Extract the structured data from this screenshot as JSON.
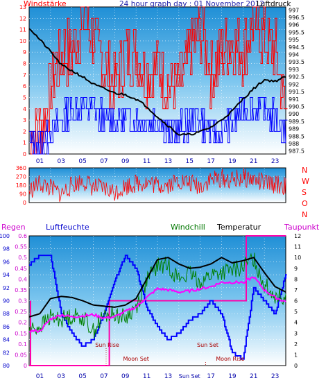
{
  "chart_data": [
    {
      "type": "line",
      "title": "24 hour graph day : 01 November 2012",
      "left_axis_label": "Windstärke",
      "right_axis_label": "Luftdruck",
      "x_ticks": [
        "01",
        "03",
        "05",
        "07",
        "09",
        "11",
        "13",
        "15",
        "17",
        "19",
        "21",
        "23"
      ],
      "left_ticks": [
        "0",
        "1",
        "2",
        "3",
        "4",
        "5",
        "6",
        "7",
        "8",
        "9",
        "10",
        "11",
        "12",
        "13"
      ],
      "right_ticks": [
        "987.5",
        "988",
        "988.5",
        "989",
        "989.5",
        "990",
        "990.5",
        "991",
        "991.5",
        "992",
        "992.5",
        "993",
        "993.5",
        "994",
        "994.5",
        "995",
        "995.5",
        "996",
        "996.5",
        "997"
      ],
      "series": [
        {
          "name": "Windstärke (gust)",
          "color": "#ff0000",
          "x": [
            0,
            1,
            2,
            3,
            4,
            5,
            6,
            7,
            8,
            9,
            10,
            11,
            12,
            13,
            14,
            15,
            16,
            17,
            18,
            19,
            20,
            21,
            22,
            23,
            24
          ],
          "values": [
            2,
            2,
            6,
            9,
            9,
            12,
            10,
            8,
            6,
            9,
            9,
            7,
            8,
            6,
            6,
            9,
            11,
            7,
            9,
            10,
            9,
            12,
            10,
            9,
            3
          ]
        },
        {
          "name": "Windstärke (average)",
          "color": "#0000ff",
          "x": [
            0,
            1,
            2,
            3,
            4,
            5,
            6,
            7,
            8,
            9,
            10,
            11,
            12,
            13,
            14,
            15,
            16,
            17,
            18,
            19,
            20,
            21,
            22,
            23,
            24
          ],
          "values": [
            1,
            1,
            2,
            3,
            4,
            4,
            4,
            3,
            3,
            3,
            3,
            3,
            3,
            2,
            2,
            3,
            3,
            2,
            2,
            3,
            4,
            4,
            4,
            3,
            2
          ]
        },
        {
          "name": "Luftdruck",
          "color": "#000000",
          "x": [
            0,
            1,
            2,
            3,
            4,
            5,
            6,
            7,
            8,
            9,
            10,
            11,
            12,
            13,
            14,
            15,
            16,
            17,
            18,
            19,
            20,
            21,
            22,
            23,
            24
          ],
          "values": [
            995.8,
            995.0,
            994.2,
            993.3,
            992.9,
            992.5,
            992.0,
            991.7,
            991.4,
            991.3,
            991.0,
            990.5,
            989.8,
            989.2,
            988.6,
            988.6,
            988.8,
            989.1,
            989.6,
            990.2,
            991.0,
            991.7,
            992.3,
            992.2,
            992.5
          ]
        }
      ],
      "ylim_left": [
        0,
        13
      ],
      "ylim_right": [
        987.3,
        997.2
      ]
    },
    {
      "type": "line",
      "left_ticks": [
        "0",
        "90",
        "180",
        "270",
        "360"
      ],
      "right_ticks": [
        "N",
        "W",
        "S",
        "O",
        "N"
      ],
      "series": [
        {
          "name": "Windrichtung",
          "color": "#ff0000",
          "x": [
            0,
            1,
            2,
            3,
            4,
            5,
            6,
            7,
            8,
            9,
            10,
            11,
            12,
            13,
            14,
            15,
            16,
            17,
            18,
            19,
            20,
            21,
            22,
            23,
            24
          ],
          "values": [
            120,
            200,
            150,
            90,
            180,
            230,
            160,
            140,
            110,
            170,
            200,
            210,
            180,
            190,
            230,
            200,
            170,
            240,
            250,
            230,
            260,
            240,
            200,
            190,
            170
          ]
        }
      ],
      "ylim": [
        0,
        360
      ]
    },
    {
      "type": "line",
      "labels": {
        "regen": "Regen",
        "luftfeuchte": "Luftfeuchte",
        "windchill": "Windchill",
        "temperatur": "Temperatur",
        "taupunkt": "Taupunkt"
      },
      "luftfeuchte_ticks": [
        "80",
        "82",
        "84",
        "86",
        "88",
        "90",
        "92",
        "94",
        "96",
        "98",
        "100"
      ],
      "regen_ticks": [
        "0",
        "0.05",
        "0.1",
        "0.15",
        "0.2",
        "0.25",
        "0.3",
        "0.35",
        "0.4",
        "0.45",
        "0.5",
        "0.55",
        "0.6"
      ],
      "temp_ticks": [
        "0",
        "1",
        "2",
        "3",
        "4",
        "5",
        "6",
        "7",
        "8",
        "9",
        "10",
        "11",
        "12"
      ],
      "x_ticks": [
        "01",
        "03",
        "05",
        "07",
        "09",
        "11",
        "13",
        "Sun Set",
        "17",
        "19",
        "21",
        "23"
      ],
      "annotations": [
        "Sun Rise",
        "Moon Set",
        "Sun Set",
        "Moon Rise"
      ],
      "series": [
        {
          "name": "Luftfeuchte",
          "color": "#0000ff",
          "x": [
            0,
            1,
            2,
            3,
            4,
            5,
            6,
            7,
            8,
            9,
            10,
            11,
            12,
            13,
            14,
            15,
            16,
            17,
            18,
            19,
            20,
            21,
            22,
            23,
            24
          ],
          "values": [
            95.5,
            97,
            97,
            88,
            85,
            83,
            84,
            88,
            93,
            97,
            95,
            89,
            86,
            84,
            85,
            87,
            88,
            90,
            88,
            82,
            81,
            92,
            90,
            88,
            94
          ]
        },
        {
          "name": "Temperatur",
          "color": "#000000",
          "x": [
            0,
            1,
            2,
            3,
            4,
            5,
            6,
            7,
            8,
            9,
            10,
            11,
            12,
            13,
            14,
            15,
            16,
            17,
            18,
            19,
            20,
            21,
            22,
            23,
            24
          ],
          "values": [
            4.5,
            4.8,
            6.2,
            6.4,
            6.3,
            6.0,
            5.6,
            5.5,
            5.4,
            5.6,
            6.2,
            8.0,
            9.8,
            10.0,
            9.4,
            9.0,
            9.1,
            9.4,
            10.0,
            9.5,
            9.7,
            10.0,
            8.6,
            7.3,
            6.8
          ]
        },
        {
          "name": "Windchill",
          "color": "#008000",
          "x": [
            0,
            1,
            2,
            3,
            4,
            5,
            6,
            7,
            8,
            9,
            10,
            11,
            12,
            13,
            14,
            15,
            16,
            17,
            18,
            19,
            20,
            21,
            22,
            23,
            24
          ],
          "values": [
            3.3,
            3.6,
            4.5,
            4.3,
            4.6,
            4.5,
            3.2,
            4.6,
            4.8,
            4.4,
            5.4,
            7.9,
            9.2,
            9.3,
            8.0,
            8.5,
            7.7,
            8.4,
            8.6,
            8.8,
            9.1,
            9.9,
            7.5,
            6.5,
            6.4
          ]
        },
        {
          "name": "Taupunkt",
          "color": "#ff00ff",
          "x": [
            0,
            1,
            2,
            3,
            4,
            5,
            6,
            7,
            8,
            9,
            10,
            11,
            12,
            13,
            14,
            15,
            16,
            17,
            18,
            19,
            20,
            21,
            22,
            23,
            24
          ],
          "values": [
            3.2,
            3.2,
            4.3,
            4.7,
            4.5,
            4.6,
            4.7,
            4.4,
            4.5,
            5.0,
            5.4,
            6.3,
            7.1,
            7.0,
            6.8,
            6.9,
            7.1,
            7.3,
            7.7,
            7.7,
            7.7,
            8.2,
            7.0,
            6.3,
            5.9
          ]
        },
        {
          "name": "Regen",
          "color": "#ff00aa",
          "x": [
            0,
            7.5,
            7.5,
            24
          ],
          "values": [
            0.0,
            0.0,
            0.3,
            0.3
          ]
        }
      ],
      "ylim_left": [
        80,
        100
      ],
      "ylim_regen": [
        0,
        0.6
      ],
      "ylim_temp": [
        0,
        12
      ]
    }
  ]
}
